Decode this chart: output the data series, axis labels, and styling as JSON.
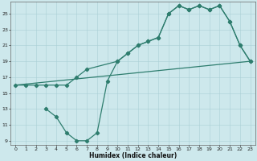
{
  "line1_x": [
    0,
    1,
    2,
    3,
    4,
    5,
    6,
    7,
    10,
    11,
    12,
    13,
    14,
    15,
    16,
    17,
    18,
    19,
    20,
    21,
    22,
    23
  ],
  "line1_y": [
    16,
    16,
    16,
    16,
    16,
    16,
    17,
    18,
    19,
    20,
    21,
    21.5,
    22,
    25,
    26,
    25.5,
    26,
    25.5,
    26,
    24,
    21,
    19
  ],
  "line2_x": [
    3,
    4,
    5,
    6,
    7,
    8,
    9,
    10,
    11,
    12,
    13,
    14,
    15,
    16,
    17,
    18,
    19,
    20,
    21,
    22,
    23
  ],
  "line2_y": [
    13,
    12,
    10,
    9,
    9,
    10,
    16.5,
    19,
    20,
    21,
    21.5,
    22,
    25,
    26,
    25.5,
    26,
    25.5,
    26,
    24,
    21,
    19
  ],
  "line3_x": [
    0,
    23
  ],
  "line3_y": [
    16,
    19
  ],
  "line_color": "#2e7d6e",
  "bg_color": "#cde8ec",
  "grid_color": "#aacfd5",
  "xlabel": "Humidex (Indice chaleur)",
  "xlim": [
    -0.5,
    23.5
  ],
  "ylim": [
    8.5,
    26.5
  ],
  "xticks": [
    0,
    1,
    2,
    3,
    4,
    5,
    6,
    7,
    8,
    9,
    10,
    11,
    12,
    13,
    14,
    15,
    16,
    17,
    18,
    19,
    20,
    21,
    22,
    23
  ],
  "yticks": [
    9,
    11,
    13,
    15,
    17,
    19,
    21,
    23,
    25
  ],
  "marker": "D",
  "markersize": 2.2,
  "linewidth": 0.9
}
